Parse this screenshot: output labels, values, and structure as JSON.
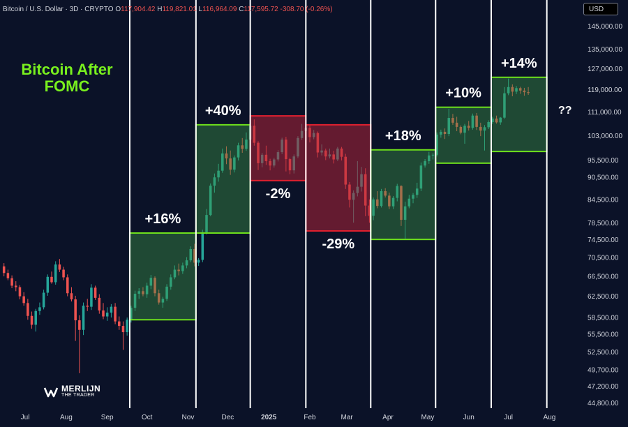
{
  "header": {
    "symbol": "Bitcoin / U.S. Dollar · 3D · CRYPTO",
    "open_label": "O",
    "open": "117,904.42",
    "high_label": "H",
    "high": "119,821.01",
    "low_label": "L",
    "low": "116,964.09",
    "close_label": "C",
    "close": "117,595.72",
    "change": "-308.70 (-0.26%)",
    "currency": "USD"
  },
  "annotation": {
    "question": "??"
  },
  "logo": {
    "name": "MERLIJN",
    "sub": "THE TRADER",
    "icon": "merlijn-logo-icon"
  },
  "colors": {
    "background": "#0b1228",
    "bull": "#26a69a",
    "bear": "#ef5350",
    "title": "#79f01e",
    "green_box_stroke": "#6ee01c",
    "red_box_stroke": "#e0202f",
    "separator": "#ffffff"
  },
  "chart_data": {
    "type": "candlestick",
    "title": "Bitcoin After FOMC",
    "ylim": [
      44800,
      145000
    ],
    "y_scale": "log",
    "price_ticks": [
      "145,000.00",
      "135,000.00",
      "127,000.00",
      "119,000.00",
      "111,000.00",
      "103,000.00",
      "95,500.00",
      "90,500.00",
      "84,500.00",
      "78,500.00",
      "74,500.00",
      "70,500.00",
      "66,500.00",
      "62,500.00",
      "58,500.00",
      "55,500.00",
      "52,500.00",
      "49,700.00",
      "47,200.00",
      "44,800.00"
    ],
    "time_ticks": [
      "Jul",
      "Aug",
      "Sep",
      "Oct",
      "Nov",
      "Dec",
      "2025",
      "Feb",
      "Mar",
      "Apr",
      "May",
      "Jun",
      "Jul",
      "Aug"
    ],
    "time_axis_range": [
      "2024-06-12",
      "2025-08-25"
    ],
    "fomc_dates": [
      "2024-09-18",
      "2024-11-07",
      "2024-12-18",
      "2025-01-29",
      "2025-03-19",
      "2025-05-07",
      "2025-06-18",
      "2025-07-30"
    ],
    "fomc_boxes": [
      {
        "start": "2024-09-18",
        "end": "2024-11-07",
        "low": 58000,
        "high": 76000,
        "label": "+16%",
        "direction": "up"
      },
      {
        "start": "2024-11-07",
        "end": "2024-12-18",
        "low": 76000,
        "high": 106500,
        "label": "+40%",
        "direction": "up"
      },
      {
        "start": "2024-12-18",
        "end": "2025-01-29",
        "low": 89500,
        "high": 109500,
        "label": "-2%",
        "direction": "down"
      },
      {
        "start": "2025-01-29",
        "end": "2025-03-19",
        "low": 76500,
        "high": 106500,
        "label": "-29%",
        "direction": "down"
      },
      {
        "start": "2025-03-19",
        "end": "2025-05-07",
        "low": 74500,
        "high": 98500,
        "label": "+18%",
        "direction": "up"
      },
      {
        "start": "2025-05-07",
        "end": "2025-06-18",
        "low": 94500,
        "high": 112500,
        "label": "+10%",
        "direction": "up"
      },
      {
        "start": "2025-06-18",
        "end": "2025-07-30",
        "low": 98000,
        "high": 123500,
        "label": "+14%",
        "direction": "up"
      }
    ],
    "candles_ohlc_3d": [
      [
        68500,
        69200,
        66400,
        67100
      ],
      [
        67100,
        67800,
        65600,
        66000
      ],
      [
        66000,
        66600,
        64000,
        64500
      ],
      [
        64500,
        65400,
        63400,
        64200
      ],
      [
        64200,
        64600,
        61800,
        62400
      ],
      [
        62400,
        63200,
        60600,
        61100
      ],
      [
        61100,
        61900,
        58000,
        58700
      ],
      [
        58700,
        59500,
        56400,
        57100
      ],
      [
        57100,
        60000,
        55900,
        59600
      ],
      [
        59600,
        61200,
        58900,
        60300
      ],
      [
        60300,
        63700,
        59900,
        63100
      ],
      [
        63100,
        66800,
        62500,
        66300
      ],
      [
        66300,
        67400,
        64900,
        65200
      ],
      [
        65200,
        69600,
        64700,
        68900
      ],
      [
        68900,
        70100,
        67300,
        67800
      ],
      [
        67800,
        68400,
        65600,
        66200
      ],
      [
        66200,
        66800,
        62400,
        63000
      ],
      [
        63000,
        64200,
        61400,
        61800
      ],
      [
        61800,
        62500,
        54300,
        57900
      ],
      [
        57900,
        58800,
        49100,
        56200
      ],
      [
        56200,
        61200,
        55300,
        60600
      ],
      [
        60600,
        61900,
        59600,
        60400
      ],
      [
        60400,
        64800,
        59800,
        64100
      ],
      [
        64100,
        64500,
        61700,
        62100
      ],
      [
        62100,
        62800,
        59100,
        59700
      ],
      [
        59700,
        61100,
        58100,
        58600
      ],
      [
        58600,
        60300,
        57800,
        59300
      ],
      [
        59300,
        60900,
        58400,
        60400
      ],
      [
        60400,
        61100,
        57200,
        57700
      ],
      [
        57700,
        58600,
        56200,
        56900
      ],
      [
        56900,
        57700,
        52800,
        55800
      ],
      [
        55800,
        58400,
        55200,
        58000
      ],
      [
        58000,
        60600,
        57500,
        60200
      ],
      [
        60200,
        63500,
        59600,
        62900
      ],
      [
        62900,
        64000,
        61900,
        63400
      ],
      [
        63400,
        64200,
        62400,
        62800
      ],
      [
        62800,
        65100,
        62100,
        64500
      ],
      [
        64500,
        66700,
        63800,
        66100
      ],
      [
        66100,
        66400,
        62400,
        63000
      ],
      [
        63000,
        63700,
        60800,
        61200
      ],
      [
        61200,
        62300,
        60200,
        61900
      ],
      [
        61900,
        64800,
        61500,
        64300
      ],
      [
        64300,
        66800,
        63700,
        66200
      ],
      [
        66200,
        68700,
        65800,
        67800
      ],
      [
        67800,
        69100,
        66600,
        67500
      ],
      [
        67500,
        69300,
        66900,
        68700
      ],
      [
        68700,
        70500,
        68100,
        69800
      ],
      [
        69800,
        72900,
        69400,
        72300
      ],
      [
        72300,
        73500,
        68500,
        69300
      ],
      [
        69300,
        70300,
        68600,
        69900
      ],
      [
        69900,
        76800,
        69400,
        76200
      ],
      [
        76200,
        81900,
        75700,
        80400
      ],
      [
        80400,
        88700,
        80100,
        88100
      ],
      [
        88100,
        91500,
        86200,
        90400
      ],
      [
        90400,
        94300,
        89200,
        92300
      ],
      [
        92300,
        98900,
        91700,
        97400
      ],
      [
        97400,
        99600,
        94200,
        95900
      ],
      [
        95900,
        98300,
        91100,
        92600
      ],
      [
        92600,
        96800,
        91800,
        96200
      ],
      [
        96200,
        100700,
        95300,
        99900
      ],
      [
        99900,
        102200,
        97600,
        98800
      ],
      [
        98800,
        104000,
        98200,
        101700
      ],
      [
        101700,
        106900,
        101100,
        106200
      ],
      [
        106200,
        108300,
        99800,
        100700
      ],
      [
        100700,
        101200,
        92500,
        94500
      ],
      [
        94500,
        97600,
        93300,
        97000
      ],
      [
        97000,
        99800,
        94000,
        95100
      ],
      [
        95100,
        95800,
        92400,
        93800
      ],
      [
        93800,
        96100,
        93200,
        95600
      ],
      [
        95600,
        98400,
        95000,
        97800
      ],
      [
        97800,
        102300,
        97200,
        101700
      ],
      [
        101700,
        102600,
        92100,
        95700
      ],
      [
        95700,
        96100,
        91300,
        92400
      ],
      [
        92400,
        97100,
        91500,
        96500
      ],
      [
        96500,
        102800,
        96000,
        102200
      ],
      [
        102200,
        106800,
        101600,
        104500
      ],
      [
        104500,
        109600,
        103900,
        105500
      ],
      [
        105500,
        106400,
        100800,
        102500
      ],
      [
        102500,
        104800,
        101800,
        103800
      ],
      [
        103800,
        104300,
        96200,
        97700
      ],
      [
        97700,
        100200,
        96800,
        98300
      ],
      [
        98300,
        98900,
        95400,
        96500
      ],
      [
        96500,
        98900,
        95900,
        97100
      ],
      [
        97100,
        98200,
        94400,
        95600
      ],
      [
        95600,
        99400,
        95100,
        98900
      ],
      [
        98900,
        99400,
        95300,
        96400
      ],
      [
        96400,
        97300,
        87200,
        88400
      ],
      [
        88400,
        89100,
        82300,
        84300
      ],
      [
        84300,
        86800,
        78500,
        86100
      ],
      [
        86100,
        95100,
        85200,
        87800
      ],
      [
        87800,
        93400,
        86500,
        91300
      ],
      [
        91300,
        93000,
        80100,
        82800
      ],
      [
        82800,
        84400,
        78500,
        80200
      ],
      [
        80200,
        84900,
        79100,
        84400
      ],
      [
        84400,
        86600,
        82100,
        82700
      ],
      [
        82700,
        87200,
        82300,
        86600
      ],
      [
        86600,
        87400,
        84900,
        85400
      ],
      [
        85400,
        86200,
        81900,
        82600
      ],
      [
        82600,
        85300,
        81900,
        84800
      ],
      [
        84800,
        88600,
        83900,
        88000
      ],
      [
        88000,
        88200,
        77700,
        79200
      ],
      [
        79200,
        83800,
        74700,
        82600
      ],
      [
        82600,
        85600,
        82100,
        84600
      ],
      [
        84600,
        86100,
        83400,
        85600
      ],
      [
        85600,
        88900,
        84800,
        87300
      ],
      [
        87300,
        94700,
        86600,
        93800
      ],
      [
        93800,
        95700,
        93200,
        95100
      ],
      [
        95100,
        97900,
        94300,
        96800
      ],
      [
        96800,
        97500,
        95600,
        97000
      ],
      [
        97000,
        104000,
        96500,
        103300
      ],
      [
        103300,
        104900,
        102300,
        104200
      ],
      [
        104200,
        105300,
        101900,
        103500
      ],
      [
        103500,
        111900,
        102800,
        108800
      ],
      [
        108800,
        110200,
        106500,
        107200
      ],
      [
        107200,
        109200,
        104400,
        105800
      ],
      [
        105800,
        106300,
        103400,
        103900
      ],
      [
        103900,
        106800,
        100400,
        106200
      ],
      [
        106200,
        107800,
        104600,
        105500
      ],
      [
        105500,
        110300,
        104900,
        109600
      ],
      [
        109600,
        110500,
        104800,
        105800
      ],
      [
        105800,
        107200,
        102800,
        104600
      ],
      [
        104600,
        106400,
        98300,
        105700
      ],
      [
        105700,
        108000,
        105100,
        107400
      ],
      [
        107400,
        109200,
        106800,
        108600
      ],
      [
        108600,
        109600,
        106900,
        107300
      ],
      [
        107300,
        109100,
        106500,
        108900
      ],
      [
        108900,
        119800,
        108500,
        117500
      ],
      [
        117500,
        123000,
        116800,
        119800
      ],
      [
        119800,
        120800,
        116400,
        118100
      ],
      [
        118100,
        120200,
        117200,
        119400
      ],
      [
        119400,
        119900,
        117300,
        118500
      ],
      [
        118500,
        119500,
        116600,
        117900
      ],
      [
        117900,
        119800,
        116900,
        117600
      ]
    ]
  }
}
